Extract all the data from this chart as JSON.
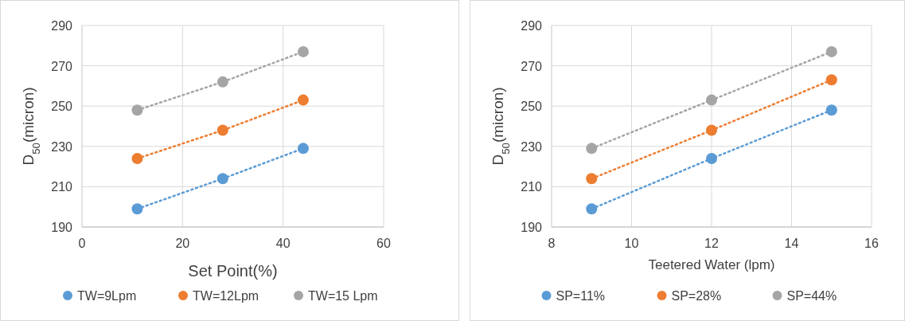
{
  "chart_data": [
    {
      "type": "line",
      "xlabel": "Set Point(%)",
      "ylabel": "D$_{50}$(micron)",
      "xlim": [
        0,
        60
      ],
      "xticks": [
        0,
        20,
        40,
        60
      ],
      "ylim": [
        190,
        290
      ],
      "yticks": [
        190,
        210,
        230,
        250,
        270,
        290
      ],
      "grid": true,
      "legend": "bottom",
      "marker": "circle",
      "line_style": "dotted",
      "x": [
        11,
        28,
        44
      ],
      "series": [
        {
          "name": "TW=9Lpm",
          "color": "#5b9bd5",
          "values": [
            199,
            214,
            229
          ]
        },
        {
          "name": "TW=12Lpm",
          "color": "#ed7d31",
          "values": [
            224,
            238,
            253
          ]
        },
        {
          "name": "TW=15 Lpm",
          "color": "#a5a5a5",
          "values": [
            248,
            262,
            277
          ]
        }
      ]
    },
    {
      "type": "line",
      "xlabel": "Teetered Water (lpm)",
      "ylabel": "D$_{50}$(micron)",
      "xlim": [
        8,
        16
      ],
      "xticks": [
        8,
        10,
        12,
        14,
        16
      ],
      "ylim": [
        190,
        290
      ],
      "yticks": [
        190,
        210,
        230,
        250,
        270,
        290
      ],
      "grid": true,
      "legend": "bottom",
      "marker": "circle",
      "line_style": "dotted",
      "x": [
        9,
        12,
        15
      ],
      "series": [
        {
          "name": "SP=11%",
          "color": "#5b9bd5",
          "values": [
            199,
            224,
            248
          ]
        },
        {
          "name": "SP=28%",
          "color": "#ed7d31",
          "values": [
            214,
            238,
            263
          ]
        },
        {
          "name": "SP=44%",
          "color": "#a5a5a5",
          "values": [
            229,
            253,
            277
          ]
        }
      ]
    }
  ]
}
